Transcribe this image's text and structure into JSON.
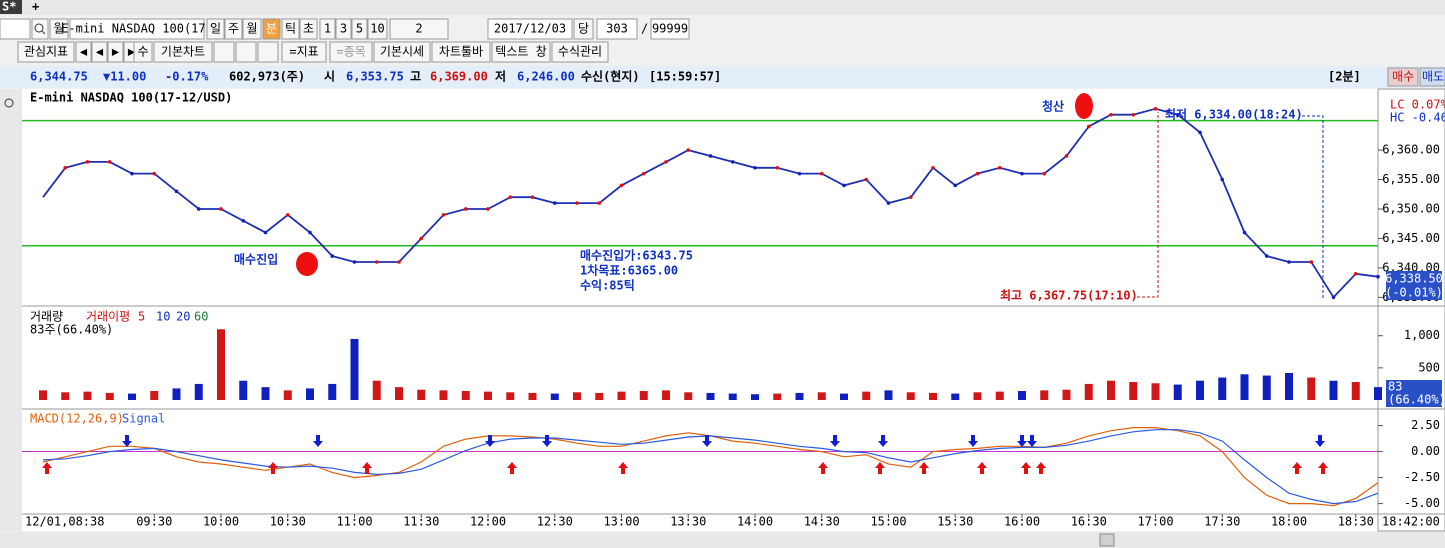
{
  "tabs": {
    "name": "S*",
    "add": "+"
  },
  "toolbar1": [
    "월",
    "E-mini NASDAQ 100(17-",
    "일",
    "주",
    "월",
    "분",
    "틱",
    "초",
    "1",
    "3",
    "5",
    "10",
    "2",
    "2017/12/03",
    "당",
    "303",
    "/",
    "99999"
  ],
  "toolbar2": [
    "관심지표",
    "◀",
    "◀",
    "▶",
    "▶",
    "수",
    "기본차트",
    "=지표",
    "=종목",
    "기본시세",
    "차트툴바",
    "텍스트 창",
    "수식관리"
  ],
  "quote": [
    "6,344.75",
    "▼11.00",
    "-0.17%",
    "602,973(주)",
    "시",
    "6,353.75",
    "고",
    "6,369.00",
    "저",
    "6,246.00",
    "수신(현지)",
    "[15:59:57]"
  ],
  "top_right": [
    "[2분]",
    "매수",
    "매도"
  ],
  "chart_data": [
    {
      "type": "line",
      "title": "E-mini NASDAQ 100(17-12/USD)",
      "color": "#1f2fb0",
      "x": [
        "08:40",
        "08:50",
        "09:00",
        "09:10",
        "09:20",
        "09:30",
        "09:40",
        "09:50",
        "10:00",
        "10:10",
        "10:20",
        "10:30",
        "10:40",
        "10:50",
        "11:00",
        "11:10",
        "11:20",
        "11:30",
        "11:40",
        "11:50",
        "12:00",
        "12:10",
        "12:20",
        "12:30",
        "12:40",
        "12:50",
        "13:00",
        "13:10",
        "13:20",
        "13:30",
        "13:40",
        "13:50",
        "14:00",
        "14:10",
        "14:20",
        "14:30",
        "14:40",
        "14:50",
        "15:00",
        "15:10",
        "15:20",
        "15:30",
        "15:40",
        "15:50",
        "16:00",
        "16:10",
        "16:20",
        "16:30",
        "16:40",
        "16:50",
        "17:00",
        "17:10",
        "17:20",
        "17:30",
        "17:40",
        "17:50",
        "18:00",
        "18:10",
        "18:20",
        "18:30",
        "18:40"
      ],
      "values": [
        6352,
        6357,
        6358,
        6358,
        6356,
        6356,
        6353,
        6350,
        6350,
        6348,
        6346,
        6349,
        6346,
        6342,
        6341,
        6341,
        6341,
        6345,
        6349,
        6350,
        6350,
        6352,
        6352,
        6351,
        6351,
        6351,
        6354,
        6356,
        6358,
        6360,
        6359,
        6358,
        6357,
        6357,
        6356,
        6356,
        6354,
        6355,
        6351,
        6352,
        6357,
        6354,
        6356,
        6357,
        6356,
        6356,
        6359,
        6364,
        6366,
        6366,
        6367,
        6366,
        6363,
        6355,
        6346,
        6342,
        6341,
        6341,
        6335,
        6339,
        6338.5
      ],
      "ylim": [
        6333.7,
        6370.2
      ],
      "yticks": [
        {
          "value": 6335,
          "label": "6,335.00"
        },
        {
          "value": 6340,
          "label": "6,340.00"
        },
        {
          "value": 6345,
          "label": "6,345.00"
        },
        {
          "value": 6350,
          "label": "6,350.00"
        },
        {
          "value": 6355,
          "label": "6,355.00"
        },
        {
          "value": 6360,
          "label": "6,360.00"
        }
      ],
      "xtick_labels": [
        "12/01,08:38",
        "09:30",
        "10:00",
        "10:30",
        "11:00",
        "11:30",
        "12:00",
        "12:30",
        "13:00",
        "13:30",
        "14:00",
        "14:30",
        "15:00",
        "15:30",
        "16:00",
        "16:30",
        "17:00",
        "17:30",
        "18:00",
        "18:30",
        "18:42:00"
      ],
      "levels": [
        6365,
        6343.75
      ],
      "level_color": "#22bb22",
      "annotations": [
        "청산",
        "매수진입",
        "매수진입가:6343.75",
        "1차목표:6365.00",
        "수익:85틱",
        "최고 6,367.75(17:10)",
        "최저 6,334.00(18:24)"
      ],
      "right_labels": [
        "LC  0.07%",
        "HC -0.46%"
      ],
      "last_label": [
        "6,338.50",
        "(-0.01%)"
      ]
    },
    {
      "type": "bar",
      "title": "거래량",
      "ma_title": "거래이평",
      "ma_periods": [
        5,
        10,
        20,
        60
      ],
      "subtitle": "83주(66.40%)",
      "values": [
        150,
        120,
        130,
        110,
        100,
        140,
        180,
        250,
        1100,
        300,
        200,
        150,
        180,
        250,
        950,
        300,
        200,
        160,
        150,
        140,
        130,
        120,
        110,
        100,
        120,
        110,
        130,
        140,
        150,
        120,
        110,
        100,
        90,
        100,
        110,
        120,
        100,
        130,
        150,
        120,
        110,
        100,
        120,
        130,
        140,
        150,
        160,
        250,
        300,
        280,
        260,
        240,
        300,
        350,
        400,
        380,
        420,
        350,
        300,
        280,
        200
      ],
      "ylim": [
        0,
        1400
      ],
      "yticks": [
        {
          "value": 1000,
          "label": "1,000"
        },
        500
      ],
      "value_box": [
        "83",
        "(66.40%)"
      ]
    },
    {
      "type": "line",
      "series": [
        {
          "name": "MACD(12,26,9)",
          "color": "#e0600a",
          "values": [
            -1,
            -0.5,
            0,
            0.5,
            0.5,
            0.3,
            -0.5,
            -1,
            -1.2,
            -1.5,
            -1.8,
            -1.5,
            -1.2,
            -2,
            -2.5,
            -2.3,
            -2,
            -1,
            0.5,
            1.2,
            1.5,
            1.5,
            1.4,
            1.2,
            0.8,
            0.5,
            0.5,
            1,
            1.5,
            1.8,
            1.5,
            1,
            0.8,
            0.5,
            0.2,
            0,
            -0.5,
            -0.3,
            -1.2,
            -1.5,
            0,
            0.2,
            0.3,
            0.5,
            0.5,
            0.4,
            0.8,
            1.5,
            2,
            2.3,
            2.3,
            2,
            1.5,
            0,
            -2.5,
            -4.2,
            -5,
            -5,
            -5.2,
            -4.5,
            -3
          ]
        },
        {
          "name": "Signal",
          "color": "#2a5be0",
          "values": [
            -0.8,
            -0.7,
            -0.4,
            0,
            0.2,
            0.3,
            0,
            -0.4,
            -0.8,
            -1.1,
            -1.4,
            -1.5,
            -1.4,
            -1.6,
            -2,
            -2.2,
            -2.1,
            -1.7,
            -0.8,
            0.1,
            0.8,
            1.2,
            1.3,
            1.3,
            1.1,
            0.9,
            0.7,
            0.8,
            1.1,
            1.4,
            1.5,
            1.3,
            1.1,
            0.8,
            0.5,
            0.3,
            0,
            -0.1,
            -0.6,
            -1,
            -0.6,
            -0.2,
            0.1,
            0.3,
            0.4,
            0.4,
            0.6,
            1,
            1.5,
            1.9,
            2.1,
            2.1,
            1.8,
            1,
            -0.8,
            -2.5,
            -4,
            -4.6,
            -5,
            -4.8,
            -4
          ]
        }
      ],
      "ylim": [
        -6,
        3.8
      ],
      "yticks": [
        {
          "value": 2.5,
          "label": "2.50"
        },
        {
          "value": 0,
          "label": "0.00"
        },
        {
          "value": -2.5,
          "label": "-2.50"
        },
        {
          "value": -5,
          "label": "-5.00"
        }
      ],
      "zero_line": 0,
      "zero_color": "#cc33cc"
    }
  ]
}
